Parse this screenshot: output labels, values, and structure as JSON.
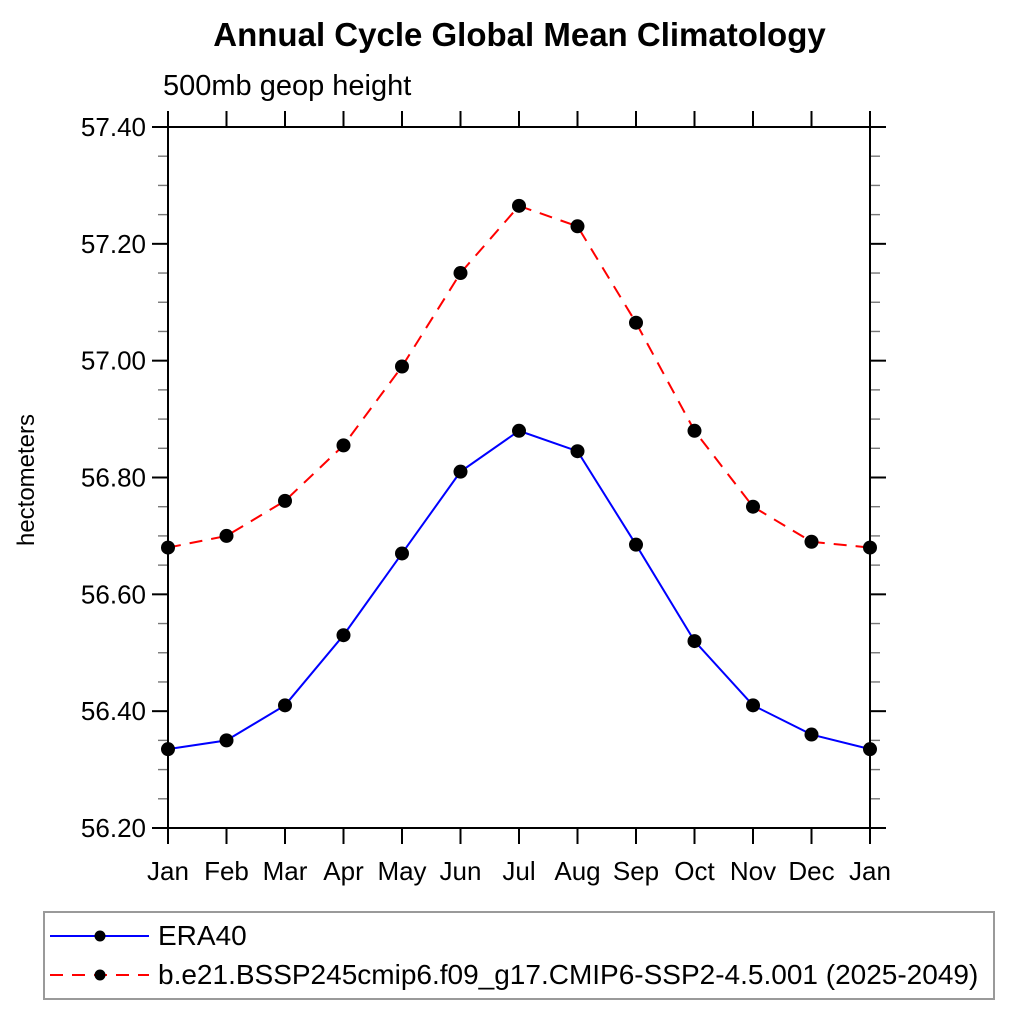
{
  "page": {
    "title": "Annual Cycle Global Mean Climatology",
    "subtitle": "500mb geop height",
    "ylabel": "hectometers"
  },
  "chart_data": {
    "type": "line",
    "title": "Annual Cycle Global Mean Climatology",
    "subtitle": "500mb geop height",
    "xlabel": "",
    "ylabel": "hectometers",
    "categories": [
      "Jan",
      "Feb",
      "Mar",
      "Apr",
      "May",
      "Jun",
      "Jul",
      "Aug",
      "Sep",
      "Oct",
      "Nov",
      "Dec",
      "Jan"
    ],
    "ylim": [
      56.2,
      57.4
    ],
    "ytick_labels": [
      "56.20",
      "56.40",
      "56.60",
      "56.80",
      "57.00",
      "57.20",
      "57.40"
    ],
    "ytick_step": 0.2,
    "ytick_minor_step": 0.05,
    "grid": false,
    "legend_position": "bottom-box",
    "axis_color": "#000000",
    "minor_tick_color": "#777777",
    "marker_color": "#000000",
    "series": [
      {
        "name": "ERA40",
        "color": "#0000ff",
        "dash": "solid",
        "marker": "circle",
        "values": [
          56.335,
          56.35,
          56.41,
          56.53,
          56.67,
          56.81,
          56.88,
          56.845,
          56.685,
          56.52,
          56.41,
          56.36,
          56.335
        ]
      },
      {
        "name": "b.e21.BSSP245cmip6.f09_g17.CMIP6-SSP2-4.5.001 (2025-2049)",
        "color": "#ff0000",
        "dash": "dashed",
        "marker": "circle",
        "values": [
          56.68,
          56.7,
          56.76,
          56.855,
          56.99,
          57.15,
          57.265,
          57.23,
          57.065,
          56.88,
          56.75,
          56.69,
          56.68
        ]
      }
    ]
  }
}
